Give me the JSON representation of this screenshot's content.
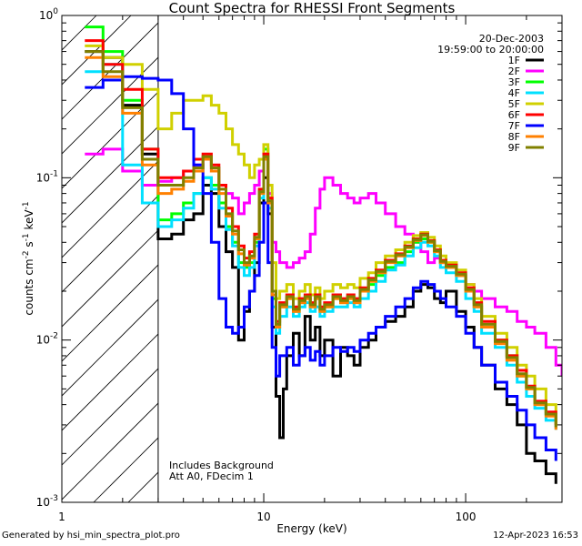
{
  "chart_data": {
    "type": "line",
    "title": "Count Spectra for RHESSI Front Segments",
    "xlabel": "Energy (keV)",
    "ylabel_base": "counts cm",
    "ylabel_exp1": "-2",
    "ylabel_mid1": " s",
    "ylabel_exp2": "-1",
    "ylabel_mid2": " keV",
    "ylabel_exp3": "-1",
    "x_scale": "log",
    "y_scale": "log",
    "xlim": [
      1,
      300
    ],
    "ylim": [
      0.001,
      1
    ],
    "x_ticks": [
      {
        "value": 1,
        "label": "1"
      },
      {
        "value": 10,
        "label": "10"
      },
      {
        "value": 100,
        "label": "100"
      }
    ],
    "y_ticks": [
      {
        "value": 1,
        "base": "10",
        "exp": "0"
      },
      {
        "value": 0.1,
        "base": "10",
        "exp": "-1"
      },
      {
        "value": 0.01,
        "base": "10",
        "exp": "-2"
      },
      {
        "value": 0.001,
        "base": "10",
        "exp": "-3"
      }
    ],
    "date": "20-Dec-2003",
    "time_range": "19:59:00 to 20:00:00",
    "annotations": [
      "Includes Background",
      "Att A0, FDecim 1"
    ],
    "hatched_region_max_energy": 3,
    "series": [
      {
        "name": "1F",
        "color": "#000000",
        "x": [
          1.3,
          1.6,
          2.0,
          2.5,
          3.0,
          3.5,
          4,
          4.5,
          5,
          5.5,
          6,
          6.5,
          7,
          7.5,
          8,
          8.5,
          9,
          9.5,
          10,
          10.5,
          11,
          11.5,
          12,
          12.5,
          13,
          14,
          15,
          16,
          17,
          18,
          19,
          20,
          22,
          24,
          26,
          28,
          30,
          33,
          36,
          40,
          45,
          50,
          55,
          60,
          65,
          70,
          75,
          80,
          90,
          100,
          110,
          120,
          140,
          160,
          180,
          200,
          220,
          250,
          280
        ],
        "y": [
          0.6,
          0.55,
          0.28,
          0.14,
          0.042,
          0.045,
          0.055,
          0.06,
          0.09,
          0.08,
          0.05,
          0.035,
          0.028,
          0.01,
          0.015,
          0.02,
          0.03,
          0.07,
          0.1,
          0.06,
          0.012,
          0.0045,
          0.0025,
          0.005,
          0.008,
          0.011,
          0.008,
          0.014,
          0.01,
          0.012,
          0.008,
          0.01,
          0.006,
          0.009,
          0.008,
          0.007,
          0.009,
          0.01,
          0.012,
          0.013,
          0.014,
          0.016,
          0.02,
          0.022,
          0.021,
          0.018,
          0.017,
          0.02,
          0.015,
          0.012,
          0.009,
          0.007,
          0.005,
          0.004,
          0.003,
          0.002,
          0.0018,
          0.0015,
          0.0013
        ]
      },
      {
        "name": "2F",
        "color": "#ff00ff",
        "x": [
          1.3,
          1.6,
          2.0,
          2.5,
          3.0,
          3.5,
          4,
          4.5,
          5,
          5.5,
          6,
          6.5,
          7,
          7.5,
          8,
          8.5,
          9,
          9.5,
          10,
          10.5,
          11,
          11.5,
          12,
          13,
          14,
          15,
          16,
          17,
          18,
          19,
          20,
          22,
          24,
          26,
          28,
          30,
          33,
          36,
          40,
          45,
          50,
          55,
          60,
          65,
          70,
          75,
          80,
          90,
          100,
          110,
          120,
          140,
          160,
          180,
          200,
          220,
          250,
          280,
          300
        ],
        "y": [
          0.14,
          0.15,
          0.11,
          0.09,
          0.095,
          0.1,
          0.11,
          0.12,
          0.13,
          0.11,
          0.09,
          0.08,
          0.075,
          0.06,
          0.07,
          0.08,
          0.09,
          0.11,
          0.14,
          0.08,
          0.04,
          0.035,
          0.03,
          0.028,
          0.03,
          0.032,
          0.035,
          0.045,
          0.065,
          0.085,
          0.1,
          0.09,
          0.08,
          0.075,
          0.07,
          0.075,
          0.08,
          0.07,
          0.06,
          0.05,
          0.045,
          0.04,
          0.035,
          0.03,
          0.032,
          0.03,
          0.028,
          0.025,
          0.022,
          0.02,
          0.018,
          0.016,
          0.015,
          0.013,
          0.012,
          0.011,
          0.009,
          0.007,
          0.006
        ]
      },
      {
        "name": "3F",
        "color": "#00ff00",
        "x": [
          1.3,
          1.6,
          2.0,
          2.5,
          3.0,
          3.5,
          4,
          4.5,
          5,
          5.5,
          6,
          6.5,
          7,
          7.5,
          8,
          8.5,
          9,
          9.5,
          10,
          10.5,
          11,
          11.5,
          12,
          13,
          14,
          15,
          16,
          17,
          18,
          19,
          20,
          22,
          24,
          26,
          28,
          30,
          33,
          36,
          40,
          45,
          50,
          55,
          60,
          65,
          70,
          75,
          80,
          90,
          100,
          110,
          120,
          140,
          160,
          180,
          200,
          220,
          250,
          280
        ],
        "y": [
          0.85,
          0.6,
          0.3,
          0.15,
          0.055,
          0.06,
          0.07,
          0.08,
          0.1,
          0.09,
          0.07,
          0.05,
          0.04,
          0.03,
          0.028,
          0.03,
          0.04,
          0.08,
          0.15,
          0.07,
          0.018,
          0.012,
          0.016,
          0.018,
          0.015,
          0.017,
          0.018,
          0.016,
          0.018,
          0.015,
          0.016,
          0.018,
          0.017,
          0.018,
          0.017,
          0.02,
          0.022,
          0.025,
          0.028,
          0.03,
          0.035,
          0.04,
          0.042,
          0.04,
          0.035,
          0.03,
          0.028,
          0.025,
          0.02,
          0.016,
          0.012,
          0.01,
          0.008,
          0.006,
          0.005,
          0.004,
          0.0035,
          0.003
        ]
      },
      {
        "name": "4F",
        "color": "#00e0ff",
        "x": [
          1.3,
          1.6,
          2.0,
          2.5,
          3.0,
          3.5,
          4,
          4.5,
          5,
          5.5,
          6,
          6.5,
          7,
          7.5,
          8,
          8.5,
          9,
          9.5,
          10,
          10.5,
          11,
          11.5,
          12,
          13,
          14,
          15,
          16,
          17,
          18,
          19,
          20,
          22,
          24,
          26,
          28,
          30,
          33,
          36,
          40,
          45,
          50,
          55,
          60,
          65,
          70,
          75,
          80,
          90,
          100,
          110,
          120,
          140,
          160,
          180,
          200,
          220,
          250,
          280
        ],
        "y": [
          0.45,
          0.5,
          0.12,
          0.07,
          0.05,
          0.055,
          0.065,
          0.08,
          0.1,
          0.085,
          0.065,
          0.048,
          0.038,
          0.028,
          0.025,
          0.028,
          0.038,
          0.075,
          0.13,
          0.065,
          0.016,
          0.011,
          0.014,
          0.016,
          0.014,
          0.016,
          0.017,
          0.015,
          0.016,
          0.014,
          0.015,
          0.016,
          0.016,
          0.017,
          0.016,
          0.018,
          0.02,
          0.023,
          0.027,
          0.029,
          0.033,
          0.037,
          0.04,
          0.038,
          0.033,
          0.028,
          0.026,
          0.023,
          0.018,
          0.015,
          0.011,
          0.009,
          0.007,
          0.0055,
          0.0045,
          0.0038,
          0.0032,
          0.0028
        ]
      },
      {
        "name": "5F",
        "color": "#d0d000",
        "x": [
          1.3,
          1.6,
          2.0,
          2.5,
          3.0,
          3.5,
          4,
          4.5,
          5,
          5.5,
          6,
          6.5,
          7,
          7.5,
          8,
          8.5,
          9,
          9.5,
          10,
          10.5,
          11,
          11.5,
          12,
          13,
          14,
          15,
          16,
          17,
          18,
          19,
          20,
          22,
          24,
          26,
          28,
          30,
          33,
          36,
          40,
          45,
          50,
          55,
          60,
          65,
          70,
          75,
          80,
          90,
          100,
          110,
          120,
          140,
          160,
          180,
          200,
          220,
          250,
          280
        ],
        "y": [
          0.65,
          0.55,
          0.5,
          0.35,
          0.2,
          0.25,
          0.3,
          0.3,
          0.32,
          0.28,
          0.25,
          0.2,
          0.16,
          0.14,
          0.12,
          0.1,
          0.12,
          0.13,
          0.16,
          0.09,
          0.03,
          0.018,
          0.02,
          0.022,
          0.018,
          0.02,
          0.022,
          0.019,
          0.021,
          0.018,
          0.02,
          0.022,
          0.021,
          0.022,
          0.021,
          0.024,
          0.026,
          0.03,
          0.033,
          0.036,
          0.04,
          0.044,
          0.046,
          0.043,
          0.038,
          0.033,
          0.03,
          0.027,
          0.022,
          0.018,
          0.014,
          0.011,
          0.009,
          0.007,
          0.006,
          0.005,
          0.004,
          0.0035
        ]
      },
      {
        "name": "6F",
        "color": "#ff0000",
        "x": [
          1.3,
          1.6,
          2.0,
          2.5,
          3.0,
          3.5,
          4,
          4.5,
          5,
          5.5,
          6,
          6.5,
          7,
          7.5,
          8,
          8.5,
          9,
          9.5,
          10,
          10.5,
          11,
          11.5,
          12,
          13,
          14,
          15,
          16,
          17,
          18,
          19,
          20,
          22,
          24,
          26,
          28,
          30,
          33,
          36,
          40,
          45,
          50,
          55,
          60,
          65,
          70,
          75,
          80,
          90,
          100,
          110,
          120,
          140,
          160,
          180,
          200,
          220,
          250,
          280
        ],
        "y": [
          0.7,
          0.5,
          0.35,
          0.15,
          0.1,
          0.1,
          0.11,
          0.13,
          0.14,
          0.12,
          0.09,
          0.065,
          0.05,
          0.038,
          0.032,
          0.035,
          0.045,
          0.085,
          0.14,
          0.075,
          0.02,
          0.013,
          0.017,
          0.019,
          0.016,
          0.018,
          0.019,
          0.017,
          0.019,
          0.016,
          0.017,
          0.019,
          0.018,
          0.019,
          0.018,
          0.021,
          0.024,
          0.027,
          0.031,
          0.034,
          0.038,
          0.042,
          0.045,
          0.041,
          0.036,
          0.031,
          0.029,
          0.026,
          0.021,
          0.017,
          0.013,
          0.01,
          0.008,
          0.0065,
          0.0052,
          0.0042,
          0.0036,
          0.003
        ]
      },
      {
        "name": "7F",
        "color": "#0000ff",
        "x": [
          1.3,
          1.6,
          2.0,
          2.5,
          3.0,
          3.5,
          4,
          4.5,
          5,
          5.5,
          6,
          6.5,
          7,
          7.5,
          8,
          8.5,
          9,
          9.5,
          10,
          10.5,
          11,
          11.5,
          12,
          13,
          14,
          15,
          16,
          17,
          18,
          19,
          20,
          22,
          24,
          26,
          28,
          30,
          33,
          36,
          40,
          45,
          50,
          55,
          60,
          65,
          70,
          75,
          80,
          90,
          100,
          110,
          120,
          140,
          160,
          180,
          200,
          220,
          250,
          280
        ],
        "y": [
          0.36,
          0.4,
          0.42,
          0.41,
          0.4,
          0.33,
          0.2,
          0.12,
          0.08,
          0.04,
          0.018,
          0.012,
          0.011,
          0.012,
          0.016,
          0.02,
          0.025,
          0.04,
          0.07,
          0.03,
          0.009,
          0.006,
          0.008,
          0.009,
          0.007,
          0.008,
          0.009,
          0.0075,
          0.0085,
          0.007,
          0.008,
          0.009,
          0.0085,
          0.009,
          0.0085,
          0.01,
          0.011,
          0.012,
          0.014,
          0.016,
          0.018,
          0.021,
          0.023,
          0.022,
          0.02,
          0.018,
          0.016,
          0.014,
          0.011,
          0.009,
          0.007,
          0.0055,
          0.0045,
          0.0037,
          0.003,
          0.0025,
          0.0021,
          0.0018
        ]
      },
      {
        "name": "8F",
        "color": "#ff8000",
        "x": [
          1.3,
          1.6,
          2.0,
          2.5,
          3.0,
          3.5,
          4,
          4.5,
          5,
          5.5,
          6,
          6.5,
          7,
          7.5,
          8,
          8.5,
          9,
          9.5,
          10,
          10.5,
          11,
          11.5,
          12,
          13,
          14,
          15,
          16,
          17,
          18,
          19,
          20,
          22,
          24,
          26,
          28,
          30,
          33,
          36,
          40,
          45,
          50,
          55,
          60,
          65,
          70,
          75,
          80,
          90,
          100,
          110,
          120,
          140,
          160,
          180,
          200,
          220,
          250,
          280
        ],
        "y": [
          0.55,
          0.42,
          0.25,
          0.12,
          0.08,
          0.085,
          0.095,
          0.11,
          0.13,
          0.11,
          0.08,
          0.058,
          0.045,
          0.034,
          0.029,
          0.032,
          0.042,
          0.08,
          0.13,
          0.07,
          0.019,
          0.012,
          0.016,
          0.018,
          0.015,
          0.017,
          0.018,
          0.016,
          0.018,
          0.015,
          0.016,
          0.018,
          0.017,
          0.018,
          0.017,
          0.02,
          0.023,
          0.026,
          0.03,
          0.033,
          0.037,
          0.041,
          0.044,
          0.04,
          0.035,
          0.03,
          0.028,
          0.025,
          0.02,
          0.016,
          0.012,
          0.0095,
          0.0075,
          0.006,
          0.005,
          0.004,
          0.0034,
          0.0028
        ]
      },
      {
        "name": "9F",
        "color": "#808000",
        "x": [
          1.3,
          1.6,
          2.0,
          2.5,
          3.0,
          3.5,
          4,
          4.5,
          5,
          5.5,
          6,
          6.5,
          7,
          7.5,
          8,
          8.5,
          9,
          9.5,
          10,
          10.5,
          11,
          11.5,
          12,
          13,
          14,
          15,
          16,
          17,
          18,
          19,
          20,
          22,
          24,
          26,
          28,
          30,
          33,
          36,
          40,
          45,
          50,
          55,
          60,
          65,
          70,
          75,
          80,
          90,
          100,
          110,
          120,
          140,
          160,
          180,
          200,
          220,
          250,
          280
        ],
        "y": [
          0.6,
          0.45,
          0.27,
          0.13,
          0.09,
          0.09,
          0.1,
          0.115,
          0.135,
          0.115,
          0.085,
          0.06,
          0.047,
          0.036,
          0.03,
          0.033,
          0.043,
          0.082,
          0.135,
          0.072,
          0.02,
          0.0125,
          0.0165,
          0.0185,
          0.0155,
          0.0175,
          0.0185,
          0.0165,
          0.0185,
          0.0155,
          0.0165,
          0.0185,
          0.0175,
          0.0185,
          0.0175,
          0.0205,
          0.0235,
          0.0265,
          0.0305,
          0.0335,
          0.0375,
          0.0415,
          0.0445,
          0.0405,
          0.0355,
          0.0305,
          0.0285,
          0.0255,
          0.0205,
          0.0165,
          0.0125,
          0.0098,
          0.0078,
          0.0062,
          0.0051,
          0.0041,
          0.0035,
          0.0029
        ]
      }
    ]
  },
  "footer": {
    "left": "Generated by hsi_min_spectra_plot.pro",
    "right": "12-Apr-2023 16:53"
  }
}
